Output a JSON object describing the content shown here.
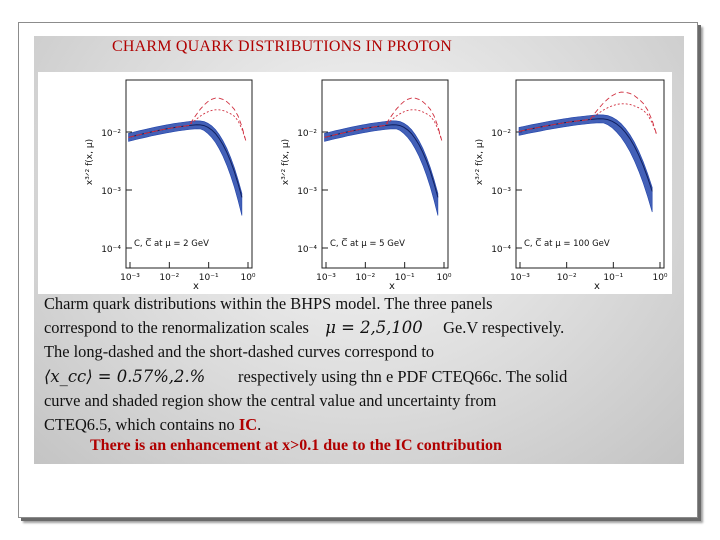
{
  "slide": {
    "title": "CHARM QUARK DISTRIBUTIONS IN PROTON",
    "caption_lines": [
      "Charm quark distributions within the BHPS model. The three panels",
      "correspond  to the renormalization scales",
      "Ge.V respectively.",
      "The long-dashed and the short-dashed  curves  correspond  to",
      "respectively  using thn e PDF CTEQ66c. The solid",
      "curve and shaded region show the central value and uncertainty from",
      "CTEQ6.5, which contains no",
      "IC",
      "."
    ],
    "mu_formula": "μ = 2,5,100",
    "xcc_formula": "⟨x_cc⟩ = 0.57%,2.%",
    "conclusion": "There  is an  enhancement at x>0.1 due to the IC contribution"
  },
  "figure": {
    "y_axis_label": "x³ᐟ² f(x, μ)",
    "x_axis_label": "x",
    "y_tick_labels": [
      "10⁻²",
      "10⁻³",
      "10⁻⁴"
    ],
    "x_tick_labels": [
      "10⁻³",
      "10⁻²",
      "10⁻¹",
      "10⁰"
    ],
    "panels": [
      {
        "legend": "C, C̅  at  μ = 2 GeV"
      },
      {
        "legend": "C, C̅  at  μ = 5 GeV"
      },
      {
        "legend": "C, C̅  at  μ = 100 GeV"
      }
    ]
  },
  "colors": {
    "title_red": "#b00000",
    "band_blue": "#2244aa",
    "dashed_red": "#d03040"
  }
}
